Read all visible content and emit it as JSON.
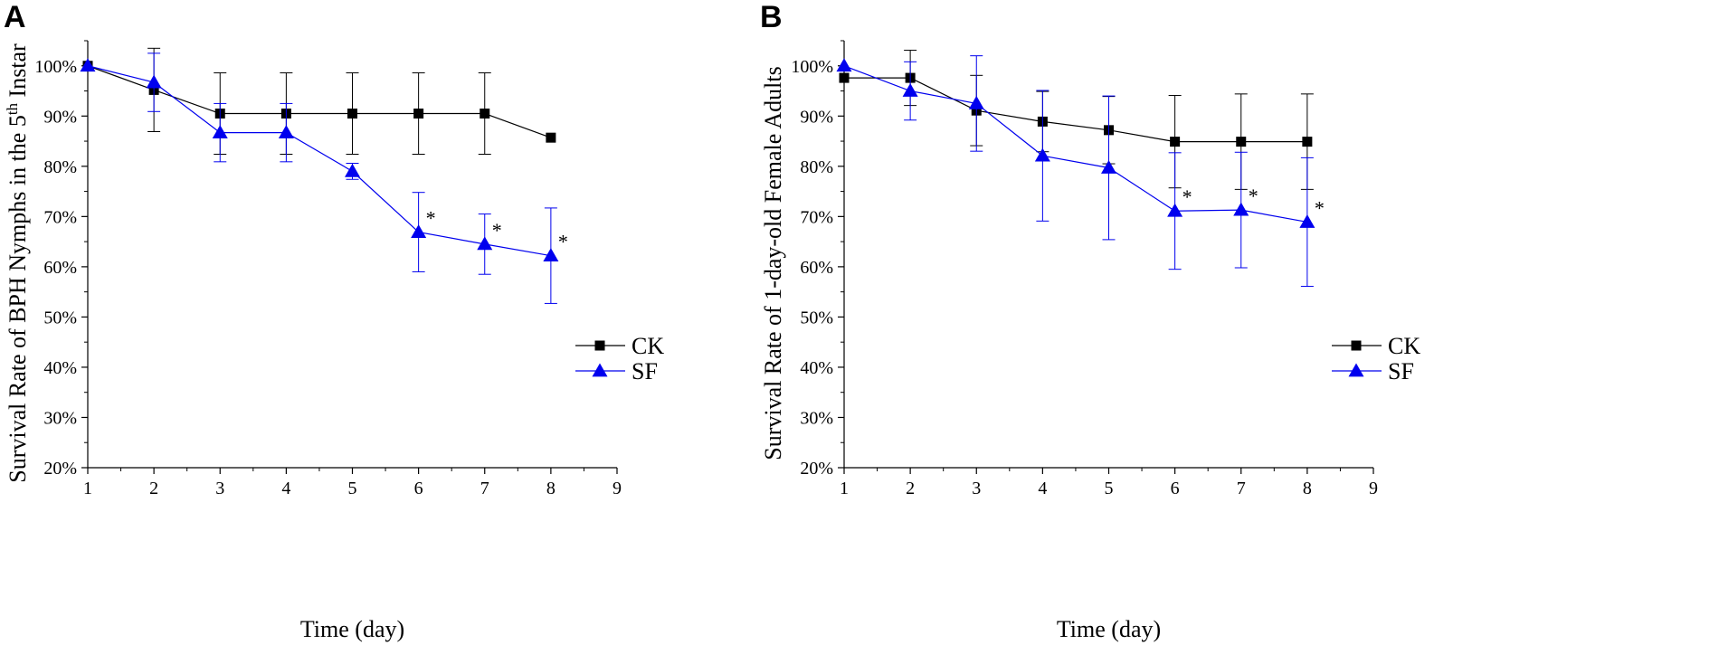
{
  "chart_data": [
    {
      "type": "line",
      "panel_label": "A",
      "title": "",
      "xlabel": "Time (day)",
      "ylabel_parts": [
        "Survival Rate of BPH Nymphs in the 5",
        "th",
        " Instar"
      ],
      "xlim": [
        1,
        9
      ],
      "ylim": [
        20,
        105
      ],
      "xticks": [
        1,
        2,
        3,
        4,
        5,
        6,
        7,
        8,
        9
      ],
      "yticks": [
        20,
        30,
        40,
        50,
        60,
        70,
        80,
        90,
        100
      ],
      "ytick_labels": [
        "20%",
        "30%",
        "40%",
        "50%",
        "60%",
        "70%",
        "80%",
        "90%",
        "100%"
      ],
      "grid": false,
      "legend_position": "right",
      "series": [
        {
          "name": "CK",
          "color": "#000000",
          "marker": "square",
          "x": [
            1,
            2,
            3,
            4,
            5,
            6,
            7,
            8
          ],
          "values": [
            100,
            95.2,
            90.5,
            90.5,
            90.5,
            90.5,
            90.5,
            85.7
          ],
          "errors": [
            0,
            8.3,
            8.1,
            8.1,
            8.1,
            8.1,
            8.1,
            0
          ]
        },
        {
          "name": "SF",
          "color": "#0000ee",
          "marker": "triangle",
          "x": [
            1,
            2,
            3,
            4,
            5,
            6,
            7,
            8
          ],
          "values": [
            100,
            96.7,
            86.7,
            86.7,
            79,
            66.9,
            64.5,
            62.2
          ],
          "errors": [
            0,
            5.8,
            5.8,
            5.8,
            1.6,
            7.9,
            6,
            9.5
          ],
          "significance": [
            "",
            "",
            "",
            "",
            "",
            "*",
            "*",
            "*"
          ]
        }
      ]
    },
    {
      "type": "line",
      "panel_label": "B",
      "title": "",
      "xlabel": "Time (day)",
      "ylabel_parts": [
        "Survival Rate of 1-day-old Female Adults"
      ],
      "xlim": [
        1,
        9
      ],
      "ylim": [
        20,
        105
      ],
      "xticks": [
        1,
        2,
        3,
        4,
        5,
        6,
        7,
        8,
        9
      ],
      "yticks": [
        20,
        30,
        40,
        50,
        60,
        70,
        80,
        90,
        100
      ],
      "ytick_labels": [
        "20%",
        "30%",
        "40%",
        "50%",
        "60%",
        "70%",
        "80%",
        "90%",
        "100%"
      ],
      "grid": false,
      "legend_position": "right",
      "series": [
        {
          "name": "CK",
          "color": "#000000",
          "marker": "square",
          "x": [
            1,
            2,
            3,
            4,
            5,
            6,
            7,
            8
          ],
          "values": [
            97.6,
            97.6,
            91.1,
            88.9,
            87.2,
            84.9,
            84.9,
            84.9
          ],
          "errors": [
            0,
            5.5,
            7,
            6,
            6.7,
            9.2,
            9.5,
            9.5
          ]
        },
        {
          "name": "SF",
          "color": "#0000ee",
          "marker": "triangle",
          "x": [
            1,
            2,
            3,
            4,
            5,
            6,
            7,
            8
          ],
          "values": [
            100,
            95,
            92.5,
            82.1,
            79.7,
            71.1,
            71.3,
            68.9
          ],
          "errors": [
            0,
            5.8,
            9.5,
            13,
            14.3,
            11.6,
            11.5,
            12.8
          ],
          "significance": [
            "",
            "",
            "",
            "",
            "",
            "*",
            "*",
            "*"
          ]
        }
      ]
    }
  ]
}
